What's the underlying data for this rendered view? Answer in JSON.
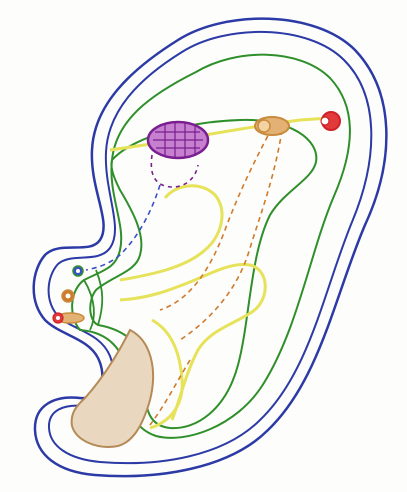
{
  "diagram": {
    "colors": {
      "paper": "#fdfdfb",
      "outer_contour": "#2c3aa6",
      "green_layer": "#2f8f2a",
      "yellow_layer": "#e6e25a",
      "yellow_fill": "#f6f3b0",
      "brown_region": "#b58a57",
      "brown_fill": "#e9d7bf",
      "purple_body": "#7a1f8f",
      "purple_fill": "#c77fd0",
      "orange_duct": "#d07a2b",
      "blue_duct": "#3b4fc7",
      "red_vessel": "#d0202a",
      "tan_tube": "#c98b3c"
    },
    "icons": [
      "purple-hatched-oval-icon",
      "tan-tube-icon",
      "red-vessel-icon",
      "blue-duct-opening-icon",
      "orange-duct-opening-icon",
      "red-duct-opening-icon"
    ]
  }
}
